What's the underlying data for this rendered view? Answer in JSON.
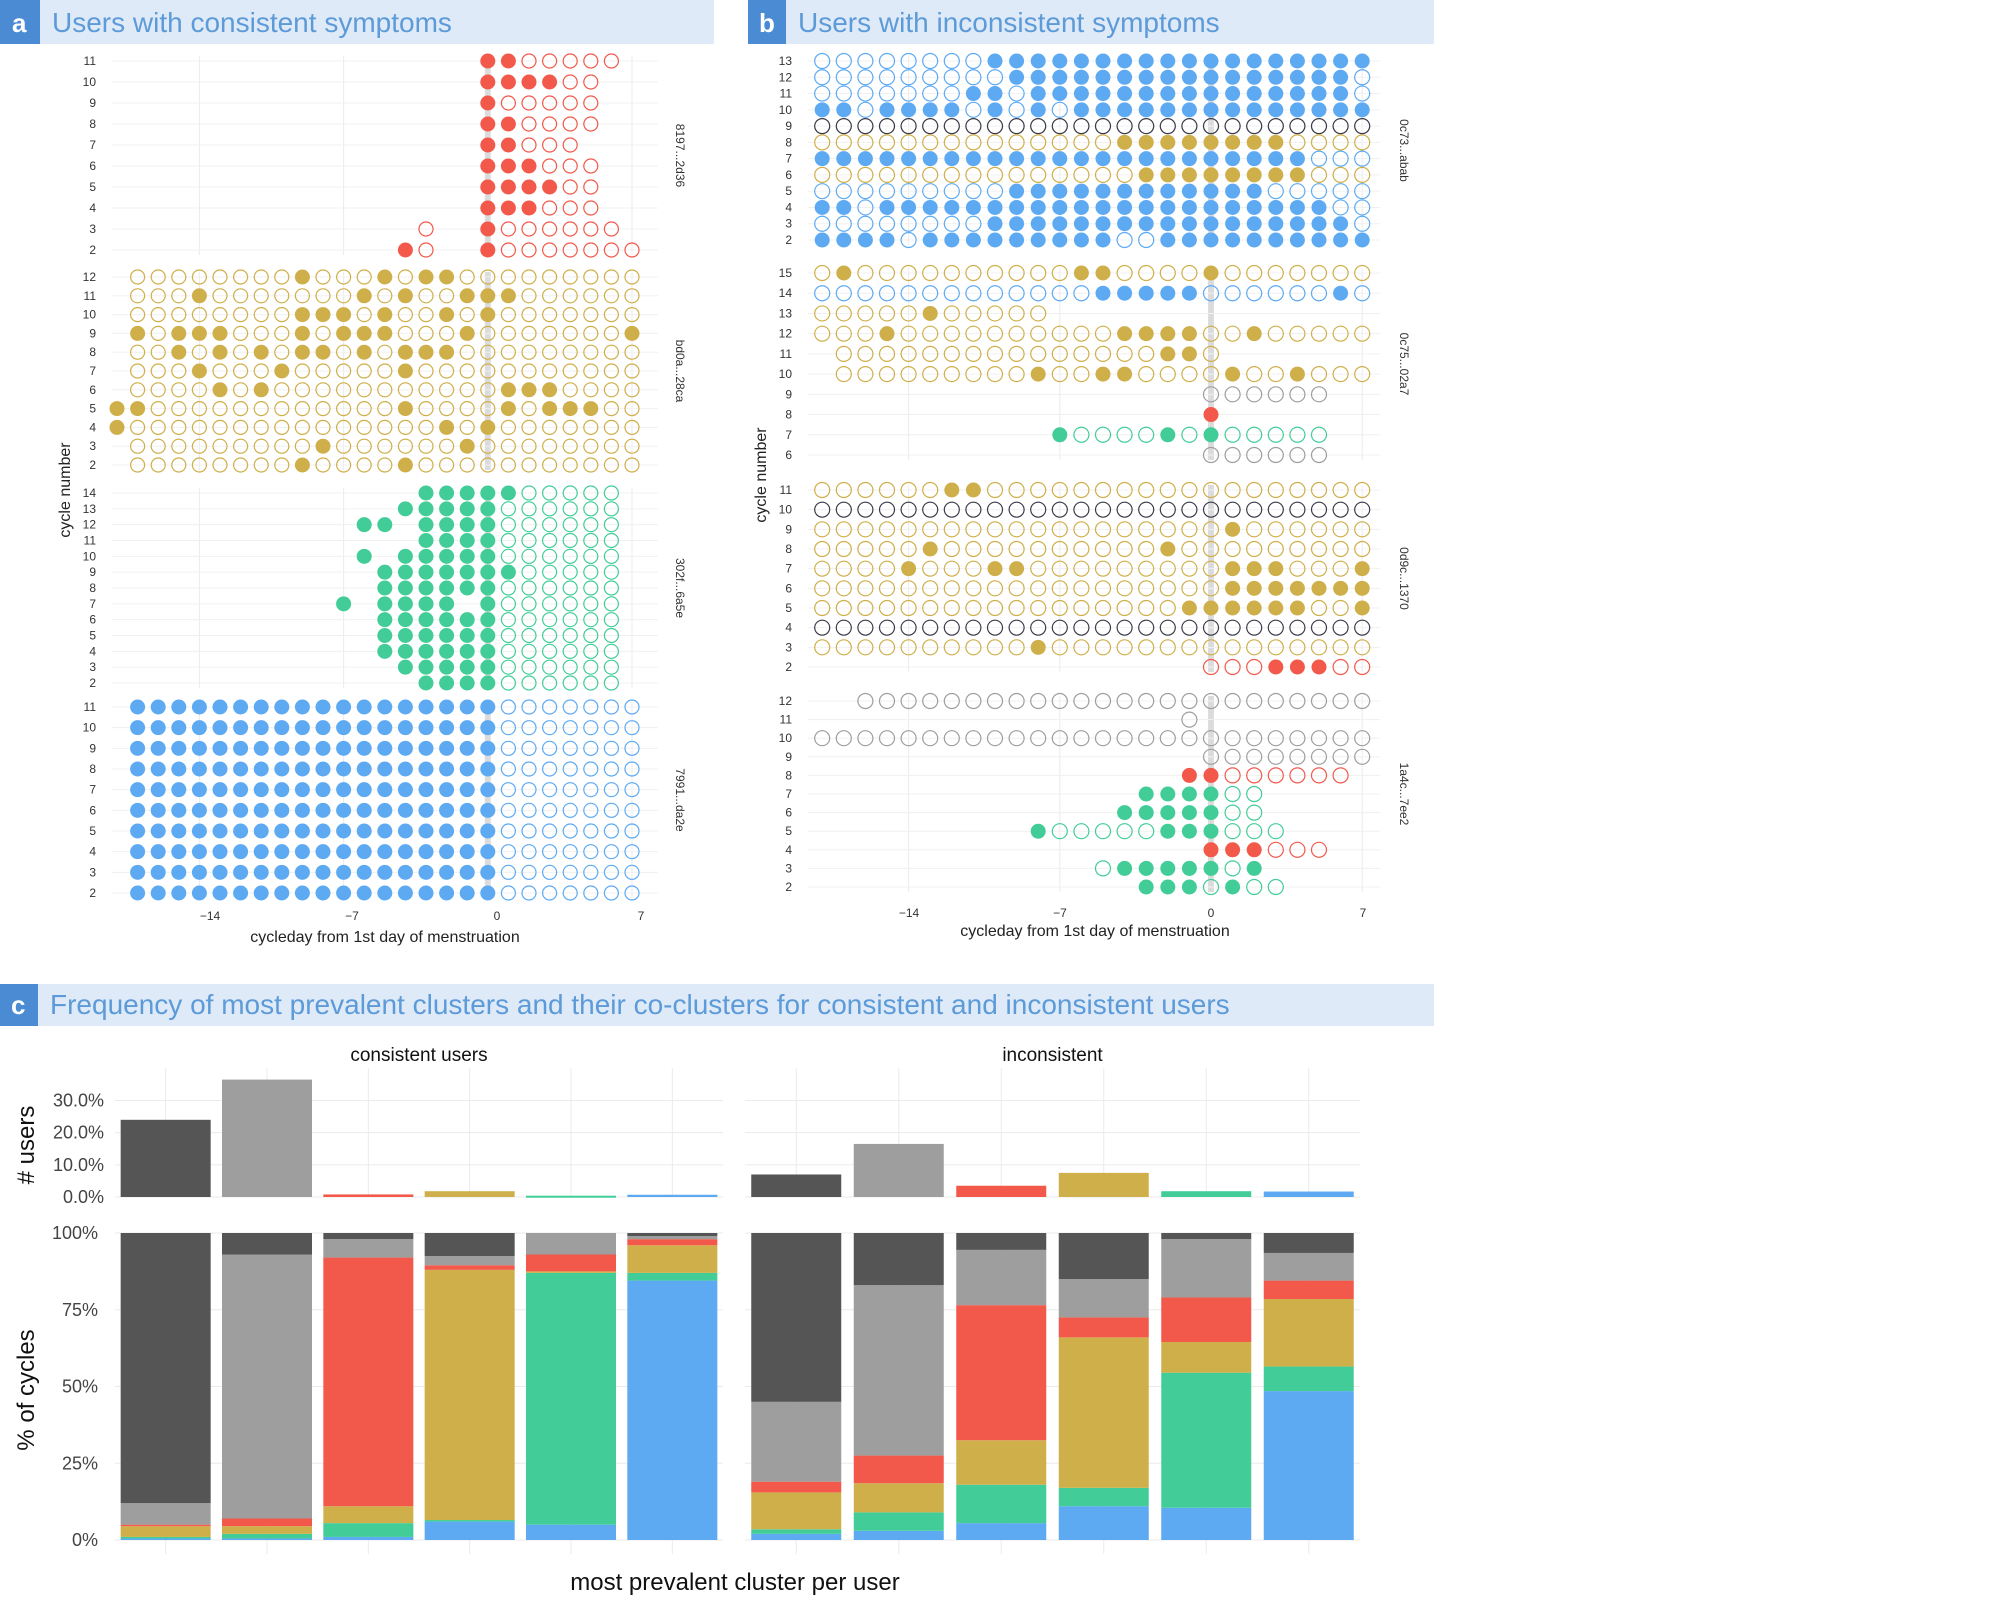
{
  "colors": {
    "red": "#f2594b",
    "gold": "#cfaf4a",
    "green": "#42cd98",
    "blue": "#5daaf3",
    "dark": "#555555",
    "lightgray": "#9e9e9e",
    "navy": "#3a3a48",
    "title_bg": "#deeaf8",
    "letter_bg": "#4a8bd3"
  },
  "panel_a": {
    "letter": "a",
    "title": "Users with consistent symptoms",
    "xlabel": "cycleday from 1st day of menstruation",
    "ylabel": "cycle number",
    "x_ticks": [
      "−14",
      "−7",
      "0",
      "7"
    ]
  },
  "panel_b": {
    "letter": "b",
    "title": "Users with inconsistent symptoms",
    "xlabel": "cycleday from 1st day of menstruation",
    "ylabel": "cycle number",
    "x_ticks": [
      "−14",
      "−7",
      "0",
      "7"
    ]
  },
  "panel_c": {
    "letter": "c",
    "title": "Frequency of most prevalent clusters and their co-clusters for consistent and inconsistent users"
  },
  "chart_data": [
    {
      "type": "scatter",
      "panel": "a",
      "description_units": "x = cycleday (-17..7), y = cycle number; filled = symptom logged, open = cycle day tracked",
      "xlim": [
        -17,
        7
      ],
      "users": [
        {
          "id": "8197...2d36",
          "cycles": [
            11,
            10,
            9,
            8,
            7,
            6,
            5,
            4,
            3,
            2
          ],
          "color": "red",
          "filled": {
            "11": [
              0,
              1
            ],
            "10": [
              0,
              1,
              2,
              3
            ],
            "9": [
              0
            ],
            "8": [
              0,
              1
            ],
            "7": [
              0,
              1
            ],
            "6": [
              0,
              1,
              2
            ],
            "5": [
              0,
              1,
              2,
              3
            ],
            "4": [
              0,
              1,
              2
            ],
            "3": [
              0
            ],
            "2": [
              -4,
              0
            ]
          },
          "open": {
            "11": [
              2,
              3,
              4,
              5,
              6
            ],
            "10": [
              4,
              5
            ],
            "9": [
              1,
              2,
              3,
              4,
              5
            ],
            "8": [
              2,
              3,
              4,
              5
            ],
            "7": [
              2,
              3,
              4
            ],
            "6": [
              3,
              4,
              5
            ],
            "5": [
              4,
              5
            ],
            "4": [
              3,
              4,
              5
            ],
            "3": [
              -3,
              1,
              2,
              3,
              4,
              5,
              6
            ],
            "2": [
              -3,
              1,
              2,
              3,
              4,
              5,
              6,
              7
            ]
          }
        },
        {
          "id": "bd0a...28ca",
          "cycles": [
            12,
            11,
            10,
            9,
            8,
            7,
            6,
            5,
            4,
            3,
            2
          ],
          "color": "gold",
          "filled": {
            "12": [
              -3,
              -9,
              -5,
              -2
            ],
            "11": [
              -14,
              -6,
              -4,
              -1,
              0,
              1
            ],
            "10": [
              -9,
              -8,
              -7,
              -5,
              -2,
              0
            ],
            "9": [
              -17,
              -15,
              -14,
              -13,
              -9,
              -7,
              -6,
              -5,
              -1,
              7
            ],
            "8": [
              -15,
              -13,
              -11,
              -9,
              -8,
              -6,
              -4,
              -3,
              -2
            ],
            "7": [
              -14,
              -10,
              -4
            ],
            "6": [
              -13,
              -11,
              1,
              2,
              3
            ],
            "5": [
              -18,
              -17,
              -4,
              1,
              3,
              4,
              5
            ],
            "4": [
              -18,
              -2,
              0
            ],
            "3": [
              -8,
              -1
            ],
            "2": [
              -9,
              -4
            ]
          },
          "open_range": [
            -17,
            7
          ]
        },
        {
          "id": "302f...6a5e",
          "cycles": [
            14,
            13,
            12,
            11,
            10,
            9,
            8,
            7,
            6,
            5,
            4,
            3,
            2
          ],
          "color": "green",
          "filled": {
            "14": [
              -3,
              -2,
              -1,
              0,
              1
            ],
            "13": [
              -4,
              -3,
              -2,
              -1,
              0
            ],
            "12": [
              -6,
              -5,
              -3,
              -2,
              -1,
              0
            ],
            "11": [
              -3,
              -2,
              -1,
              0
            ],
            "10": [
              -6,
              -4,
              -3,
              -2,
              -1,
              0
            ],
            "9": [
              -5,
              -4,
              -3,
              -2,
              -1,
              0,
              1
            ],
            "8": [
              -5,
              -4,
              -3,
              -2,
              -1,
              0
            ],
            "7": [
              -7,
              -5,
              -4,
              -3,
              -2,
              0
            ],
            "6": [
              -5,
              -4,
              -3,
              -2,
              -1,
              0
            ],
            "5": [
              -5,
              -4,
              -3,
              -2,
              -1,
              0
            ],
            "4": [
              -5,
              -4,
              -3,
              -2,
              -1,
              0
            ],
            "3": [
              -4,
              -3,
              -2,
              -1,
              0
            ],
            "2": [
              -3,
              -2,
              -1,
              0
            ]
          }
        },
        {
          "id": "7991...da2e",
          "cycles": [
            11,
            10,
            9,
            8,
            7,
            6,
            5,
            4,
            3,
            2
          ],
          "color": "blue",
          "filled_range": [
            -17,
            0
          ],
          "open_after": [
            1,
            7
          ]
        }
      ]
    },
    {
      "type": "scatter",
      "panel": "b",
      "xlim": [
        -18,
        7
      ],
      "users": [
        {
          "id": "0c73...abab",
          "cycles": [
            13,
            12,
            11,
            10,
            9,
            8,
            7,
            6,
            5,
            4,
            3,
            2
          ],
          "colors_by_cycle": {
            "9": "navy",
            "8": "gold",
            "6": "gold",
            "others": "blue"
          }
        },
        {
          "id": "0c75...02a7",
          "cycles": [
            15,
            14,
            13,
            12,
            11,
            10,
            9,
            8,
            7,
            6
          ],
          "colors_by_cycle": {
            "14": "blue",
            "9": "lightgray",
            "8": "red",
            "7": "green",
            "6": "lightgray",
            "others": "gold"
          }
        },
        {
          "id": "0d9c...1370",
          "cycles": [
            11,
            10,
            9,
            8,
            7,
            6,
            5,
            4,
            3,
            2
          ],
          "colors_by_cycle": {
            "10": "navy",
            "4": "navy",
            "2": "red",
            "others": "gold"
          }
        },
        {
          "id": "1a4c...7ee2",
          "cycles": [
            12,
            11,
            10,
            9,
            8,
            7,
            6,
            5,
            4,
            3,
            2
          ],
          "colors_by_cycle": {
            "12": "lightgray",
            "11": "lightgray",
            "10": "lightgray",
            "9": "lightgray",
            "8": "red",
            "4": "red",
            "others": "green"
          }
        }
      ]
    },
    {
      "type": "bar",
      "panel": "c-top",
      "ylabel": "# users",
      "y_ticks": [
        "0.0%",
        "10.0%",
        "20.0%",
        "30.0%"
      ],
      "ylim": [
        0,
        37
      ],
      "facets": [
        "consistent users",
        "inconsistent"
      ],
      "categories": [
        "dark",
        "lightgray",
        "red",
        "gold",
        "green",
        "blue"
      ],
      "series": [
        {
          "facet": "consistent users",
          "values": [
            24,
            36.5,
            0.8,
            1.8,
            0.4,
            0.7
          ]
        },
        {
          "facet": "inconsistent",
          "values": [
            7,
            16.5,
            3.5,
            7.5,
            1.8,
            1.7
          ]
        }
      ]
    },
    {
      "type": "bar",
      "panel": "c-bottom",
      "stacked": true,
      "xlabel": "most prevalent cluster per user",
      "ylabel": "% of cycles",
      "y_ticks": [
        "0%",
        "25%",
        "50%",
        "75%",
        "100%"
      ],
      "ylim": [
        0,
        100
      ],
      "facets": [
        "consistent users",
        "inconsistent"
      ],
      "stack_order_bottom_to_top": [
        "blue",
        "green",
        "gold",
        "red",
        "lightgray",
        "dark"
      ],
      "groups": [
        {
          "facet": "consistent users",
          "bars": [
            {
              "blue": 0.5,
              "green": 0.5,
              "gold": 3.5,
              "red": 0.5,
              "lightgray": 7,
              "dark": 88
            },
            {
              "blue": 0.5,
              "green": 1.5,
              "gold": 2.5,
              "red": 2.5,
              "lightgray": 86,
              "dark": 7
            },
            {
              "blue": 1,
              "green": 4.5,
              "gold": 5.5,
              "red": 81,
              "lightgray": 6,
              "dark": 2
            },
            {
              "blue": 6,
              "green": 0.5,
              "gold": 81.5,
              "red": 1.5,
              "lightgray": 3,
              "dark": 7.5
            },
            {
              "blue": 5,
              "green": 82,
              "gold": 0.5,
              "red": 5.5,
              "lightgray": 7,
              "dark": 0
            },
            {
              "blue": 84.5,
              "green": 2.5,
              "gold": 9,
              "red": 2,
              "lightgray": 1,
              "dark": 1
            }
          ]
        },
        {
          "facet": "inconsistent",
          "bars": [
            {
              "blue": 2,
              "green": 1.5,
              "gold": 12,
              "red": 3.5,
              "lightgray": 26,
              "dark": 55
            },
            {
              "blue": 3,
              "green": 6,
              "gold": 9.5,
              "red": 9,
              "lightgray": 55.5,
              "dark": 17
            },
            {
              "blue": 5.5,
              "green": 12.5,
              "gold": 14.5,
              "red": 44,
              "lightgray": 18,
              "dark": 5.5
            },
            {
              "blue": 11,
              "green": 6,
              "gold": 49,
              "red": 6.5,
              "lightgray": 12.5,
              "dark": 15
            },
            {
              "blue": 10.5,
              "green": 44,
              "gold": 10,
              "red": 14.5,
              "lightgray": 19,
              "dark": 2
            },
            {
              "blue": 48.5,
              "green": 8,
              "gold": 22,
              "red": 6,
              "lightgray": 9,
              "dark": 6.5
            }
          ]
        }
      ]
    }
  ]
}
